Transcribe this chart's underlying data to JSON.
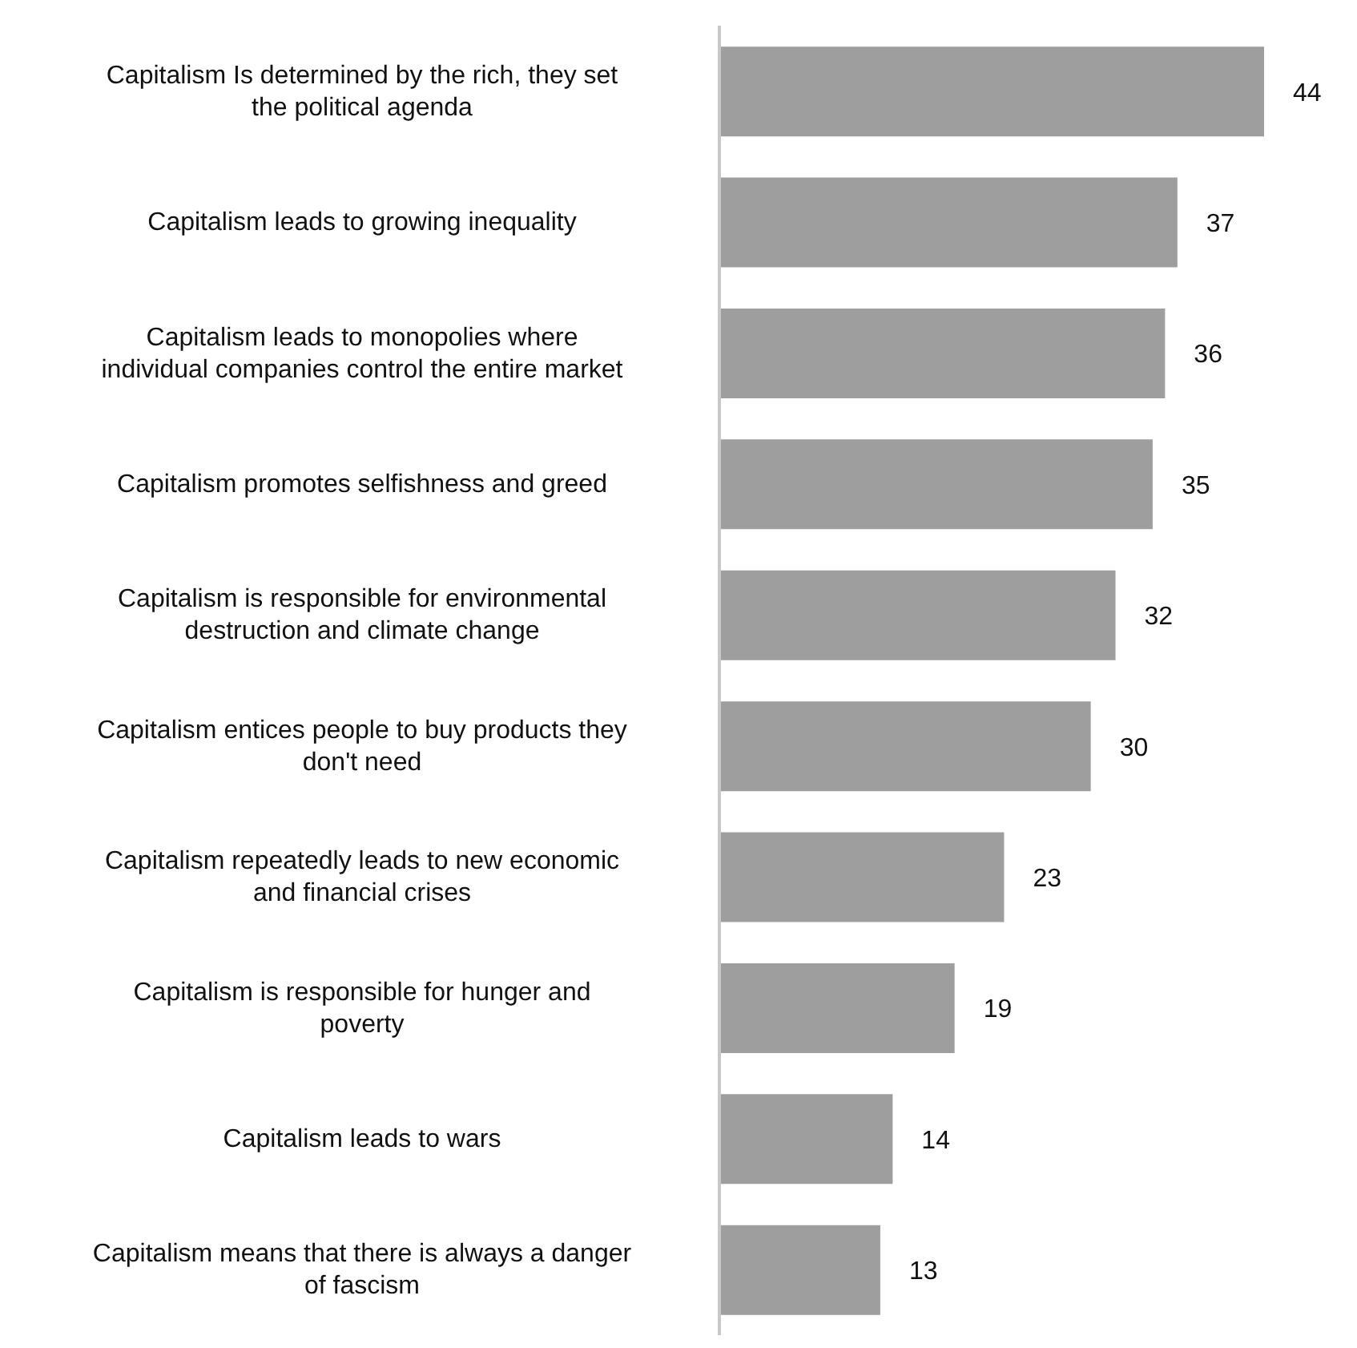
{
  "chart_data": {
    "type": "bar",
    "orientation": "horizontal",
    "categories": [
      "Capitalism Is determined by the rich, they set the political agenda",
      "Capitalism leads to growing inequality",
      "Capitalism leads to monopolies where individual companies control the entire market",
      "Capitalism promotes selfishness and greed",
      "Capitalism is responsible for environmental destruction and climate change",
      "Capitalism entices people to buy products they don't need",
      "Capitalism repeatedly leads to new economic and financial crises",
      "Capitalism is responsible for hunger and poverty",
      "Capitalism leads to wars",
      "Capitalism means that there is always a danger of fascism"
    ],
    "values": [
      44,
      37,
      36,
      35,
      32,
      30,
      23,
      19,
      14,
      13
    ],
    "color": "#9e9e9e",
    "data_labels": true,
    "grid": false,
    "legend": false
  }
}
